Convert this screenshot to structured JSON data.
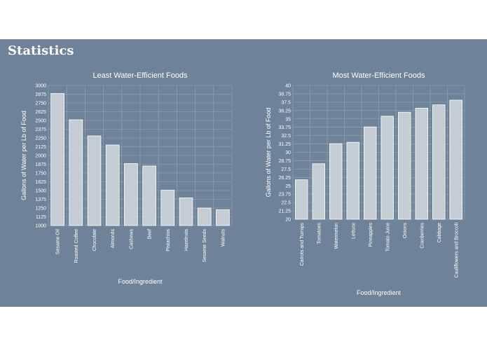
{
  "page": {
    "title": "Statistics"
  },
  "colors": {
    "panel": "#6e8399",
    "bar": "#c5ccd4",
    "text": "#ffffff"
  },
  "chart_data": [
    {
      "type": "bar",
      "title": "Least Water-Efficient Foods",
      "xlabel": "Food/Ingredient",
      "ylabel": "Gallons of Water per Lb of Food",
      "ylim": [
        1000,
        3000
      ],
      "yticks": [
        "1000",
        "1125",
        "1250",
        "1375",
        "1500",
        "1625",
        "1750",
        "1875",
        "2000",
        "2125",
        "2250",
        "2375",
        "2500",
        "2625",
        "2750",
        "2875",
        "3000"
      ],
      "categories": [
        "Sesame Oil",
        "Roasted Coffee",
        "Chocolate",
        "Almonds",
        "Cashews",
        "Beef",
        "Pistachios",
        "Hazelnuts",
        "Sesame Seeds",
        "Walnuts"
      ],
      "values": [
        2885,
        2510,
        2280,
        2150,
        1885,
        1850,
        1505,
        1395,
        1250,
        1225
      ],
      "grid": true
    },
    {
      "type": "bar",
      "title": "Most Water-Efficient Foods",
      "xlabel": "Food/Ingredient",
      "ylabel": "Gallons of Water per Lb of Food",
      "ylim": [
        20,
        40
      ],
      "yticks": [
        "20",
        "21.25",
        "22.5",
        "23.75",
        "25",
        "26.25",
        "27.5",
        "28.75",
        "30",
        "31.25",
        "32.5",
        "33.75",
        "35",
        "36.25",
        "37.5",
        "38.75",
        "40"
      ],
      "categories": [
        "Carrots and Turnips",
        "Tomatoes",
        "Watermelon",
        "Lettuce",
        "Pineapples",
        "Tomato Juice",
        "Onions",
        "Cranberries",
        "Cabbage",
        "Cauliflowers and Broccoli"
      ],
      "values": [
        25.9,
        28.3,
        31.3,
        31.5,
        33.8,
        35.4,
        36.0,
        36.6,
        37.1,
        37.8
      ],
      "grid": true
    }
  ]
}
